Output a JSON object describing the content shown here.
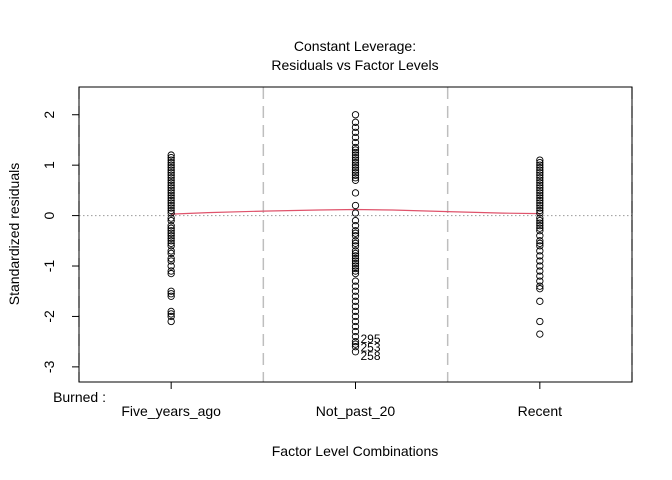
{
  "chart_data": {
    "type": "scatter",
    "title_line1": "Constant Leverage:",
    "title_line2": "Residuals vs Factor Levels",
    "xlabel": "Factor Level Combinations",
    "ylabel": "Standardized residuals",
    "factor_label": "Burned :",
    "categories": [
      "Five_years_ago",
      "Not_past_20",
      "Recent"
    ],
    "y_ticks": [
      "-3",
      "-2",
      "-1",
      "0",
      "1",
      "2"
    ],
    "ylim": [
      -3.3,
      2.55
    ],
    "xlim": [
      0.5,
      3.5
    ],
    "group_boundaries": [
      0.5,
      1.5,
      2.5,
      3.5
    ],
    "reference_line_y": 0,
    "smooth_line": {
      "x": [
        1,
        1.2,
        1.5,
        1.8,
        2,
        2.2,
        2.5,
        2.8,
        3
      ],
      "y": [
        0.03,
        0.06,
        0.09,
        0.11,
        0.12,
        0.11,
        0.08,
        0.05,
        0.04
      ]
    },
    "series": [
      {
        "category": "Five_years_ago",
        "x": 1,
        "values": [
          1.2,
          1.15,
          1.1,
          1.05,
          1.0,
          0.95,
          0.9,
          0.85,
          0.8,
          0.75,
          0.7,
          0.65,
          0.6,
          0.55,
          0.5,
          0.45,
          0.4,
          0.35,
          0.3,
          0.25,
          0.2,
          0.15,
          0.1,
          0.05,
          -0.05,
          -0.1,
          -0.2,
          -0.25,
          -0.3,
          -0.35,
          -0.4,
          -0.45,
          -0.5,
          -0.55,
          -0.6,
          -0.7,
          -0.75,
          -0.85,
          -0.9,
          -1.0,
          -1.1,
          -1.15,
          -1.5,
          -1.55,
          -1.6,
          -1.9,
          -1.95,
          -2.0,
          -2.1
        ]
      },
      {
        "category": "Not_past_20",
        "x": 2,
        "values": [
          2.0,
          1.85,
          1.75,
          1.65,
          1.55,
          1.45,
          1.35,
          1.3,
          1.25,
          1.2,
          1.15,
          1.1,
          1.05,
          1.0,
          0.95,
          0.9,
          0.85,
          0.8,
          0.75,
          0.7,
          0.45,
          0.2,
          0.05,
          -0.1,
          -0.2,
          -0.3,
          -0.35,
          -0.4,
          -0.5,
          -0.55,
          -0.6,
          -0.7,
          -0.75,
          -0.8,
          -0.85,
          -0.9,
          -0.95,
          -1.0,
          -1.05,
          -1.1,
          -1.15,
          -1.3,
          -1.4,
          -1.5,
          -1.6,
          -1.7,
          -1.8,
          -1.9,
          -2.0,
          -2.1,
          -2.2,
          -2.3,
          -2.4,
          -2.5,
          -2.55,
          -2.6,
          -2.7
        ]
      },
      {
        "category": "Recent",
        "x": 3,
        "values": [
          1.1,
          1.05,
          1.0,
          0.95,
          0.9,
          0.85,
          0.8,
          0.75,
          0.7,
          0.65,
          0.6,
          0.55,
          0.5,
          0.45,
          0.4,
          0.35,
          0.3,
          0.25,
          0.2,
          0.15,
          0.1,
          0.05,
          -0.05,
          -0.1,
          -0.15,
          -0.2,
          -0.25,
          -0.3,
          -0.4,
          -0.5,
          -0.55,
          -0.6,
          -0.7,
          -0.8,
          -0.9,
          -1.0,
          -1.1,
          -1.2,
          -1.3,
          -1.4,
          -1.45,
          -1.7,
          -2.1,
          -2.35
        ]
      }
    ],
    "annotations": [
      {
        "text": "295",
        "x": 2,
        "y": -2.45
      },
      {
        "text": "253",
        "x": 2,
        "y": -2.62
      },
      {
        "text": "258",
        "x": 2,
        "y": -2.78
      }
    ]
  }
}
